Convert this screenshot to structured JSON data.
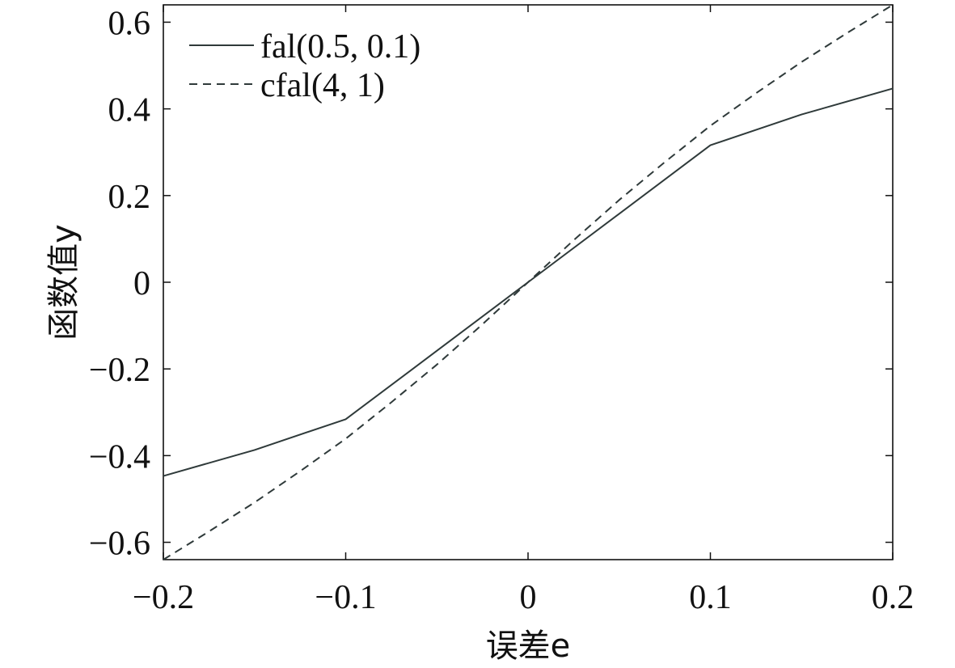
{
  "chart_data": {
    "type": "line",
    "title": "",
    "xlabel": "误差e",
    "ylabel": "函数值y",
    "xlim": [
      -0.2,
      0.2
    ],
    "ylim": [
      -0.64,
      0.64
    ],
    "x_ticks": [
      -0.2,
      -0.1,
      0,
      0.1,
      0.2
    ],
    "x_tick_labels": [
      "−0.2",
      "−0.1",
      "0",
      "0.1",
      "0.2"
    ],
    "y_ticks": [
      -0.6,
      -0.4,
      -0.2,
      0,
      0.2,
      0.4,
      0.6
    ],
    "y_tick_labels": [
      "−0.6",
      "−0.4",
      "−0.2",
      "0",
      "0.2",
      "0.4",
      "0.6"
    ],
    "grid": false,
    "legend_position": "top-left",
    "series": [
      {
        "name": "fal(0.5, 0.1)",
        "style": "solid",
        "color": "#2f3a3a",
        "x": [
          -0.2,
          -0.15,
          -0.1,
          -0.05,
          0,
          0.05,
          0.1,
          0.15,
          0.2
        ],
        "y": [
          -0.447,
          -0.387,
          -0.316,
          -0.158,
          0,
          0.158,
          0.316,
          0.387,
          0.447
        ]
      },
      {
        "name": "cfal(4, 1)",
        "style": "dashed",
        "color": "#2f3a3a",
        "x": [
          -0.2,
          -0.175,
          -0.15,
          -0.125,
          -0.1,
          -0.075,
          -0.05,
          -0.025,
          0,
          0.025,
          0.05,
          0.075,
          0.1,
          0.125,
          0.15,
          0.175,
          0.2
        ],
        "y": [
          -0.64,
          -0.575,
          -0.508,
          -0.436,
          -0.361,
          -0.277,
          -0.19,
          -0.097,
          0,
          0.097,
          0.19,
          0.277,
          0.361,
          0.436,
          0.508,
          0.575,
          0.64
        ]
      }
    ]
  }
}
